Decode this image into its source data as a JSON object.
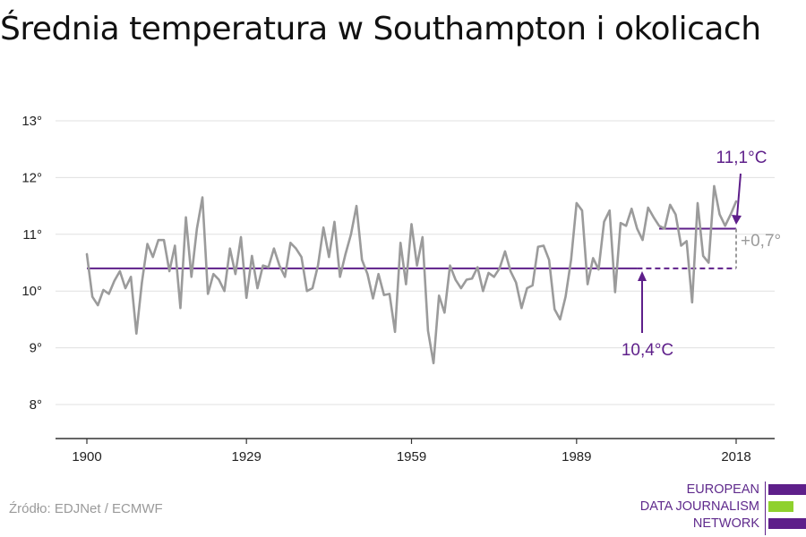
{
  "title": "Średnia temperatura w Southampton i okolicach",
  "source": "Źródło: EDJNet / ECMWF",
  "logo": {
    "lines": [
      "EUROPEAN",
      "DATA JOURNALISM",
      "NETWORK"
    ]
  },
  "colors": {
    "series": "#9b9b9b",
    "reference": "#5e1f8a",
    "grid": "#e0e0e0",
    "axis": "#333333",
    "accent": "#8fd12d"
  },
  "chart_data": {
    "type": "line",
    "title": "Średnia temperatura w Southampton i okolicach",
    "xlabel": "",
    "ylabel": "",
    "xlim": [
      1900,
      2019
    ],
    "ylim": [
      7.5,
      13.2
    ],
    "grid": true,
    "x_ticks": [
      1900,
      1929,
      1959,
      1989,
      2018
    ],
    "x_tick_labels": [
      "1900",
      "1929",
      "1959",
      "1989",
      "2018"
    ],
    "y_ticks": [
      8,
      9,
      10,
      11,
      12,
      13
    ],
    "y_tick_labels": [
      "8°",
      "9°",
      "10°",
      "11°",
      "12°",
      "13°"
    ],
    "series": [
      {
        "values": [
          10.65,
          9.9,
          9.75,
          10.02,
          9.95,
          10.18,
          10.35,
          10.05,
          10.25,
          9.25,
          10.15,
          10.83,
          10.6,
          10.9,
          10.9,
          10.35,
          10.8,
          9.7,
          11.3,
          10.25,
          11.1,
          11.65,
          9.95,
          10.3,
          10.2,
          10.0,
          10.75,
          10.3,
          10.95,
          9.88,
          10.62,
          10.05,
          10.45,
          10.42,
          10.75,
          10.45,
          10.25,
          10.85,
          10.75,
          10.6,
          10.0,
          10.05,
          10.45,
          11.12,
          10.6,
          11.22,
          10.25,
          10.65,
          11.0,
          11.5,
          10.55,
          10.3,
          9.87,
          10.3,
          9.93,
          9.95,
          9.28,
          10.85,
          10.12,
          11.18,
          10.45,
          10.95,
          9.3,
          8.73,
          9.92,
          9.62,
          10.45,
          10.2,
          10.05,
          10.2,
          10.22,
          10.42,
          10.0,
          10.32,
          10.25,
          10.4,
          10.7,
          10.35,
          10.15,
          9.7,
          10.05,
          10.1,
          10.78,
          10.8,
          10.55,
          9.68,
          9.5,
          9.9,
          10.55,
          11.55,
          11.42,
          10.12,
          10.58,
          10.38,
          11.22,
          11.42,
          9.98,
          11.2,
          11.15,
          11.45,
          11.1,
          10.9,
          11.47,
          11.3,
          11.15,
          11.1,
          11.52,
          11.35,
          10.8,
          10.88,
          9.8,
          11.55,
          10.62,
          10.5,
          11.85,
          11.35,
          11.15,
          11.35,
          11.58
        ]
      }
    ],
    "reference_lines": [
      {
        "value": 10.4,
        "label": "10,4°C"
      },
      {
        "value": 11.1,
        "label": "11,1°C"
      }
    ],
    "difference_label": "+0,7°"
  }
}
